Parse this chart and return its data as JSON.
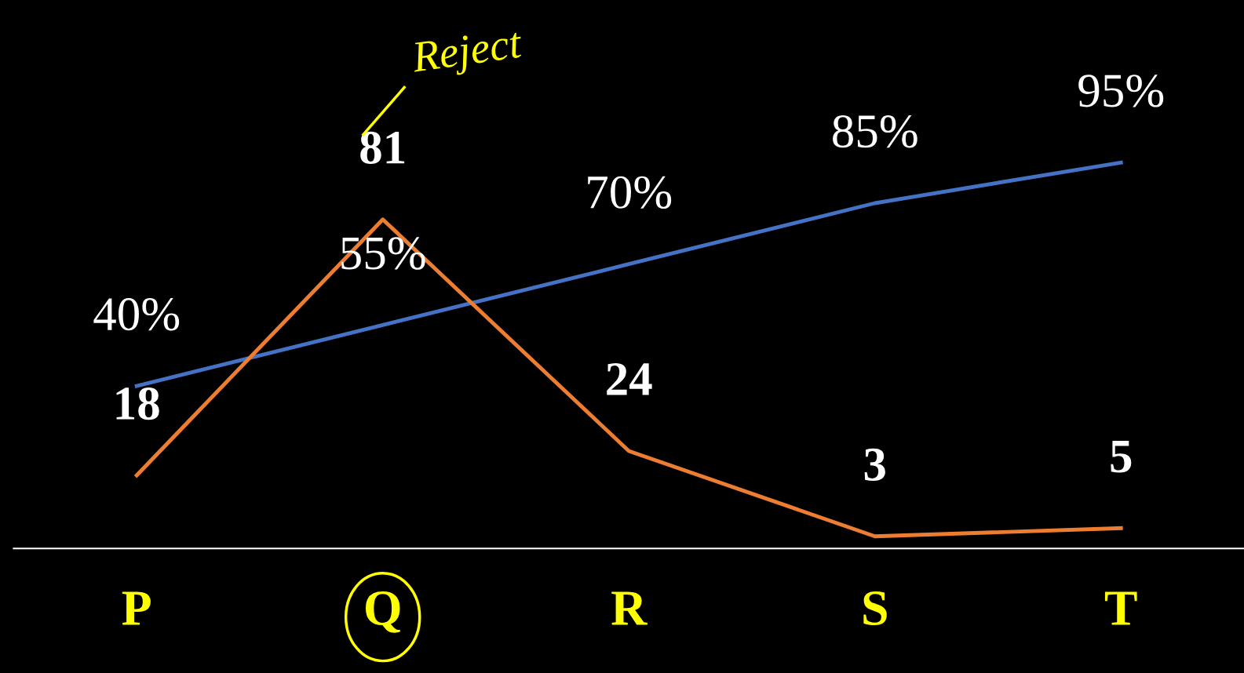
{
  "chart_data": {
    "type": "line",
    "categories": [
      "P",
      "Q",
      "R",
      "S",
      "T"
    ],
    "series": [
      {
        "color": "#4472c4",
        "values": [
          40,
          55,
          70,
          85,
          95
        ],
        "value_labels": [
          "40%",
          "55%",
          "70%",
          "85%",
          "95%"
        ]
      },
      {
        "color": "#ed7d31",
        "values": [
          18,
          81,
          24,
          3,
          5
        ],
        "value_labels": [
          "18",
          "81",
          "24",
          "3",
          "5"
        ]
      }
    ],
    "ylim": [
      0,
      135
    ],
    "tick_labels": "x",
    "grid": false,
    "legend": false,
    "marker": "none",
    "line_style": "solid",
    "annotations": [
      "Reject"
    ]
  }
}
